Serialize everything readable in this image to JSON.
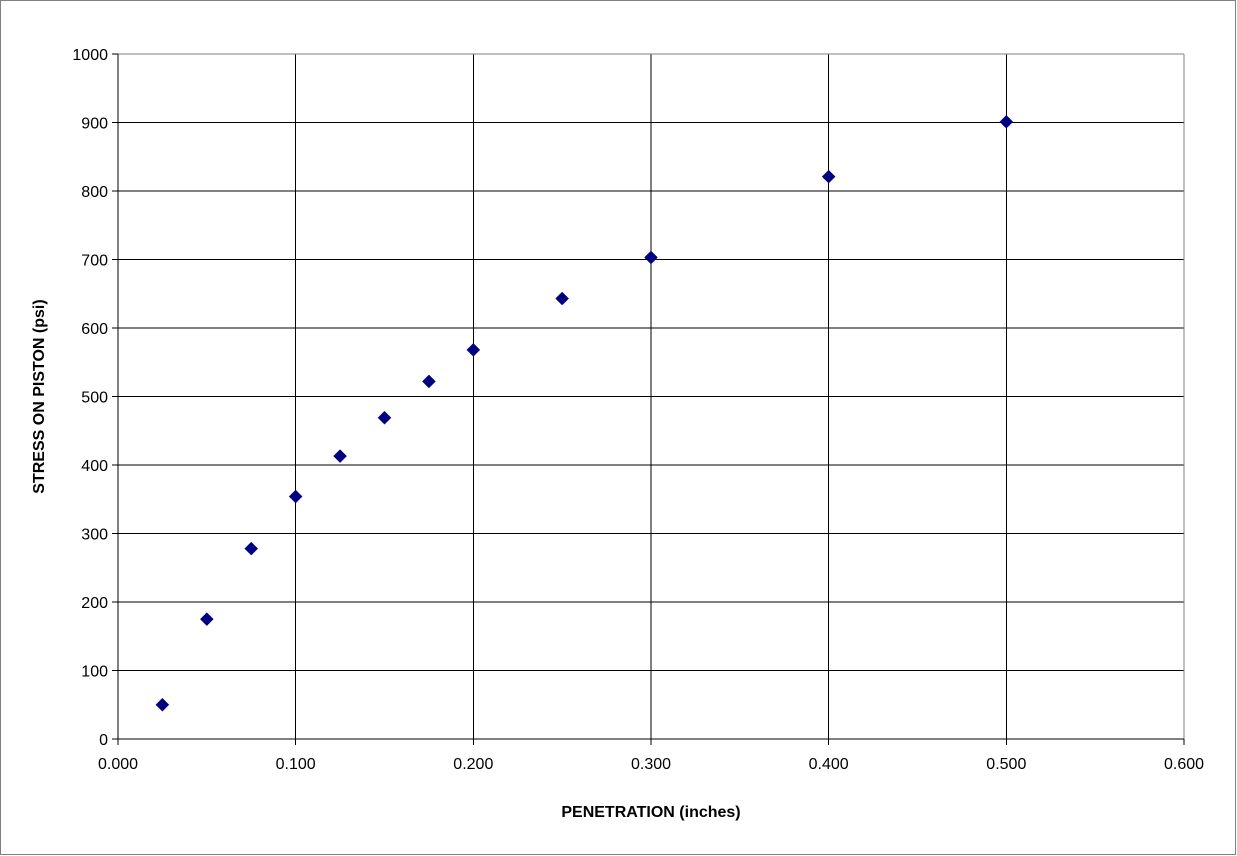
{
  "chart_data": {
    "type": "scatter",
    "title": "",
    "xlabel": "PENETRATION (inches)",
    "ylabel": "STRESS ON PISTON  (psi)",
    "xlim": [
      0.0,
      0.6
    ],
    "ylim": [
      0,
      1000
    ],
    "x_ticks": [
      "0.000",
      "0.100",
      "0.200",
      "0.300",
      "0.400",
      "0.500",
      "0.600"
    ],
    "y_ticks": [
      "0",
      "100",
      "200",
      "300",
      "400",
      "500",
      "600",
      "700",
      "800",
      "900",
      "1000"
    ],
    "grid": true,
    "legend": "none",
    "marker": "diamond",
    "marker_color": "#000080",
    "series": [
      {
        "points": [
          [
            0.025,
            50
          ],
          [
            0.05,
            175
          ],
          [
            0.075,
            278
          ],
          [
            0.1,
            354
          ],
          [
            0.125,
            413
          ],
          [
            0.15,
            469
          ],
          [
            0.175,
            522
          ],
          [
            0.2,
            568
          ],
          [
            0.25,
            643
          ],
          [
            0.3,
            703
          ],
          [
            0.4,
            821
          ],
          [
            0.5,
            901
          ]
        ]
      }
    ]
  }
}
